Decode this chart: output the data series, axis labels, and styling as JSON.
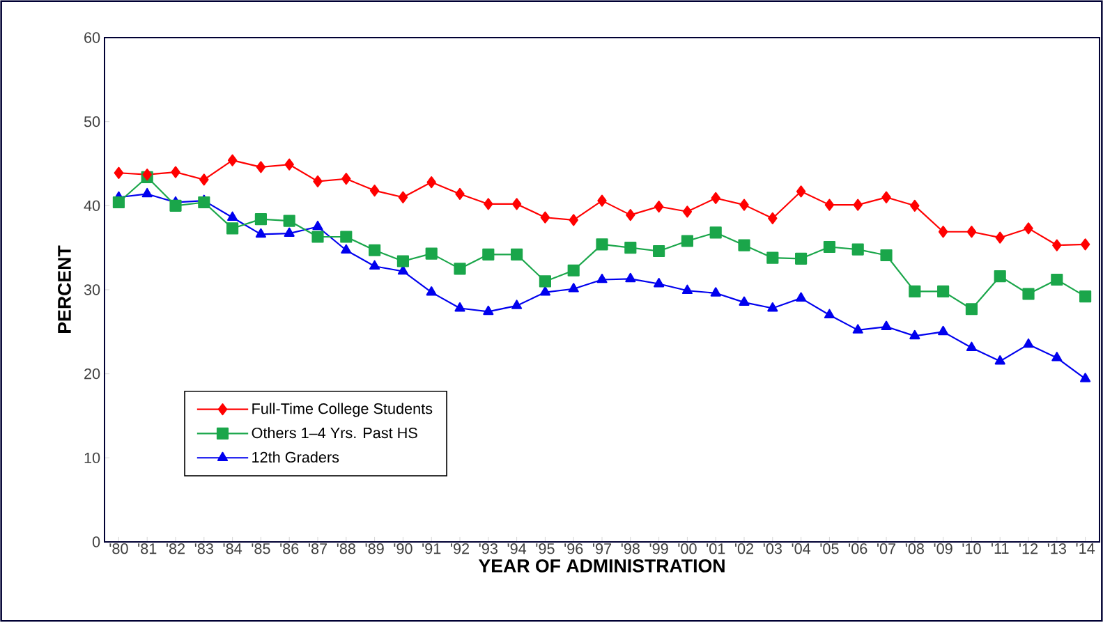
{
  "chart_data": {
    "type": "line",
    "xlabel": "YEAR OF ADMINISTRATION",
    "ylabel": "PERCENT",
    "categories": [
      "'80",
      "'81",
      "'82",
      "'83",
      "'84",
      "'85",
      "'86",
      "'87",
      "'88",
      "'89",
      "'90",
      "'91",
      "'92",
      "'93",
      "'94",
      "'95",
      "'96",
      "'97",
      "'98",
      "'99",
      "'00",
      "'01",
      "'02",
      "'03",
      "'04",
      "'05",
      "'06",
      "'07",
      "'08",
      "'09",
      "'10",
      "'11",
      "'12",
      "'13",
      "'14"
    ],
    "ylim": [
      0,
      60
    ],
    "yticks": [
      0,
      10,
      20,
      30,
      40,
      50,
      60
    ],
    "grid": false,
    "legend": "bottom left",
    "line_style": "solid",
    "series": [
      {
        "name": "Full-Time College Students",
        "color": "#ff0000",
        "marker": "diamond",
        "values": [
          43.9,
          43.7,
          44.0,
          43.1,
          45.4,
          44.6,
          44.9,
          42.9,
          43.2,
          41.8,
          41.0,
          42.8,
          41.4,
          40.2,
          40.2,
          38.6,
          38.3,
          40.6,
          38.9,
          39.9,
          39.3,
          40.9,
          40.1,
          38.5,
          41.7,
          40.1,
          40.1,
          41.0,
          40.0,
          36.9,
          36.9,
          36.2,
          37.3,
          35.3,
          35.4
        ]
      },
      {
        "name": "Others 1–4 Yrs. Past HS",
        "color": "#1aa64a",
        "marker": "square",
        "values": [
          40.4,
          43.4,
          40.0,
          40.4,
          37.3,
          38.4,
          38.2,
          36.3,
          36.3,
          34.7,
          33.4,
          34.3,
          32.5,
          34.2,
          34.2,
          31.0,
          32.3,
          35.4,
          35.0,
          34.6,
          35.8,
          36.8,
          35.3,
          33.8,
          33.7,
          35.1,
          34.8,
          34.1,
          29.8,
          29.8,
          27.7,
          31.6,
          29.5,
          31.2,
          29.2
        ]
      },
      {
        "name": "12th Graders",
        "color": "#0000ee",
        "marker": "triangle",
        "values": [
          41.0,
          41.4,
          40.4,
          40.6,
          38.6,
          36.6,
          36.7,
          37.5,
          34.7,
          32.8,
          32.2,
          29.7,
          27.8,
          27.4,
          28.1,
          29.7,
          30.1,
          31.2,
          31.3,
          30.7,
          29.9,
          29.6,
          28.5,
          27.8,
          29.0,
          27.0,
          25.2,
          25.6,
          24.5,
          25.0,
          23.1,
          21.5,
          23.5,
          21.9,
          19.4
        ]
      }
    ]
  }
}
